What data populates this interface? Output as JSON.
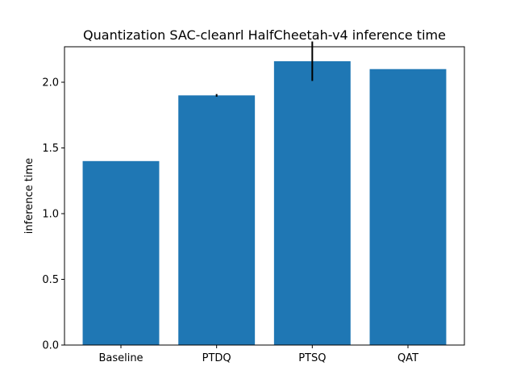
{
  "chart_data": {
    "type": "bar",
    "title": "Quantization SAC-cleanrl HalfCheetah-v4 inference time",
    "xlabel": "",
    "ylabel": "inference time",
    "categories": [
      "Baseline",
      "PTDQ",
      "PTSQ",
      "QAT"
    ],
    "values": [
      1.4,
      1.9,
      2.16,
      2.1
    ],
    "error": [
      0.0,
      0.01,
      0.15,
      0.0
    ],
    "ylim": [
      0,
      2.27
    ],
    "yticks": [
      "0.0",
      "0.5",
      "1.0",
      "1.5",
      "2.0"
    ],
    "bar_color": "#1f77b4",
    "error_color": "#000000",
    "grid": false,
    "legend": "none"
  }
}
